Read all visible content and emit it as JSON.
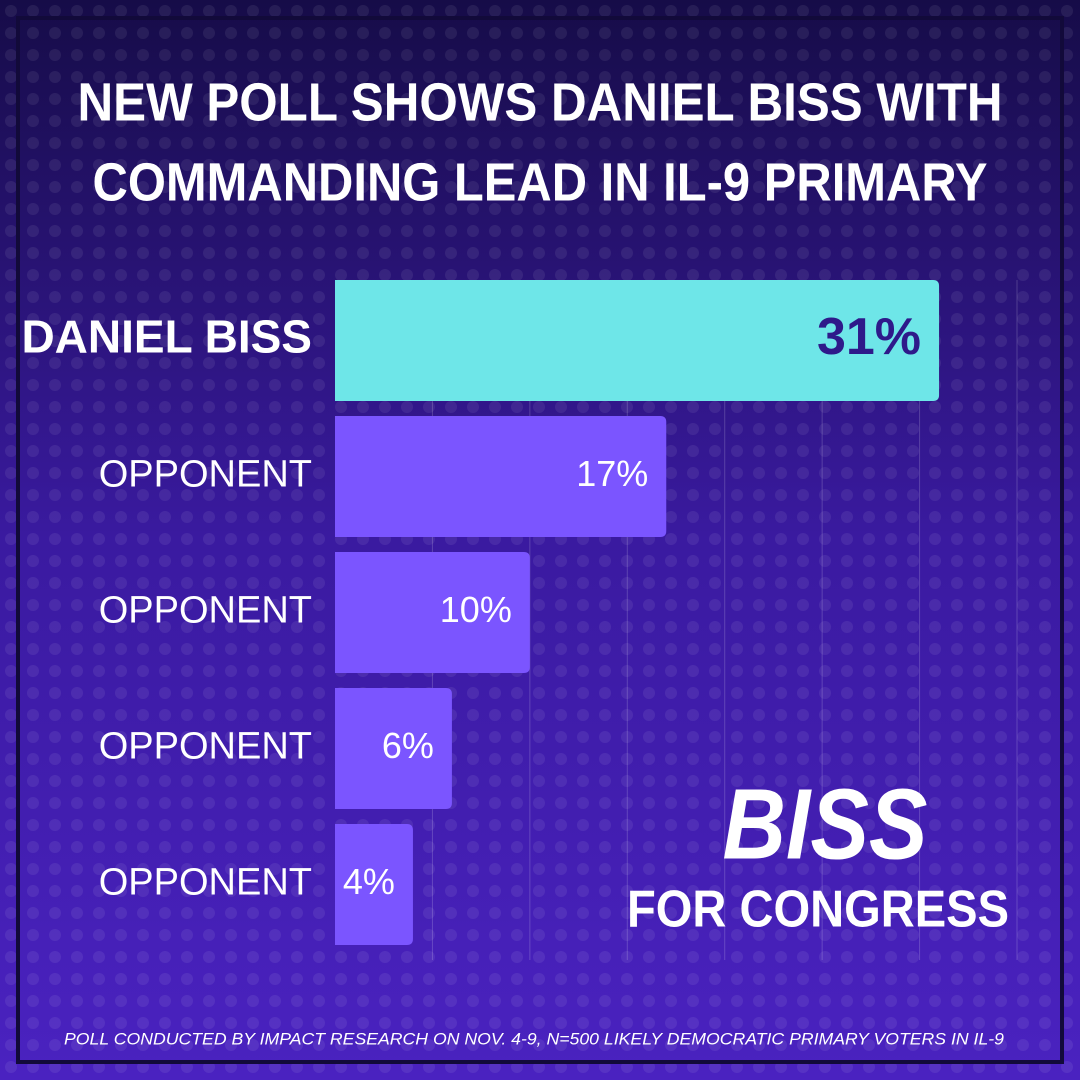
{
  "chart_data": {
    "type": "hbar",
    "title": [
      "NEW POLL SHOWS DANIEL BISS WITH",
      "COMMANDING LEAD IN IL-9 PRIMARY"
    ],
    "categories": [
      "DANIEL BISS",
      "OPPONENT",
      "OPPONENT",
      "OPPONENT",
      "OPPONENT"
    ],
    "values": [
      31,
      17,
      10,
      6,
      4
    ],
    "value_labels": [
      "31%",
      "17%",
      "10%",
      "6%",
      "4%"
    ],
    "color": "#7b55ff",
    "highlight": 0,
    "highlight_color": "#6ee6e8",
    "xlim": [
      0,
      35
    ],
    "xticks": [
      5,
      10,
      15,
      20,
      25,
      30,
      35
    ],
    "grid": true,
    "logo": [
      "BISS",
      "FOR CONGRESS"
    ],
    "footnote": "POLL CONDUCTED BY IMPACT RESEARCH ON NOV. 4-9, N=500 LIKELY DEMOCRATIC PRIMARY VOTERS IN IL-9"
  }
}
